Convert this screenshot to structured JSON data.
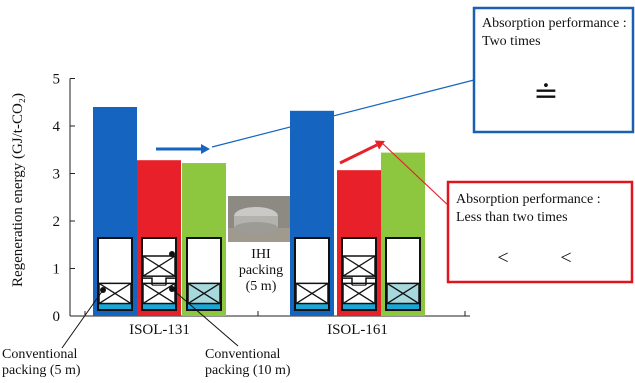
{
  "chart_data": {
    "type": "bar",
    "ylabel": "Regeneration energy  (GJ/t-CO₂)",
    "ylim": [
      0,
      5
    ],
    "yticks": [
      0,
      1,
      2,
      3,
      4,
      5
    ],
    "categories": [
      "ISOL-131",
      "ISOL-161"
    ],
    "series": [
      {
        "key": "conv5",
        "color": "#1565c0",
        "values": [
          4.4,
          4.32
        ]
      },
      {
        "key": "conv10",
        "color": "#e8202a",
        "values": [
          3.28,
          3.07
        ]
      },
      {
        "key": "ihi",
        "color": "#8dc63f",
        "values": [
          3.22,
          3.44
        ]
      }
    ],
    "annotations": {
      "conv5": "Conventional packing (5 m)",
      "conv10": "Conventional packing (10 m)",
      "ihi": "IHI packing (5 m)",
      "box1_title": "Absorption performance :",
      "box1_sub": "Two times",
      "box1_symbol": "≐",
      "box2_title": "Absorption performance :",
      "box2_sub": "Less than two times",
      "less_than": "<"
    },
    "colors": {
      "blue_box": "#1a5fb0",
      "red_box": "#e0141e",
      "cyan_band": "#1ba7d6",
      "shaded": "#a6d8dc",
      "trend_blue": "#1565c0",
      "trend_red": "#e8202a"
    }
  }
}
